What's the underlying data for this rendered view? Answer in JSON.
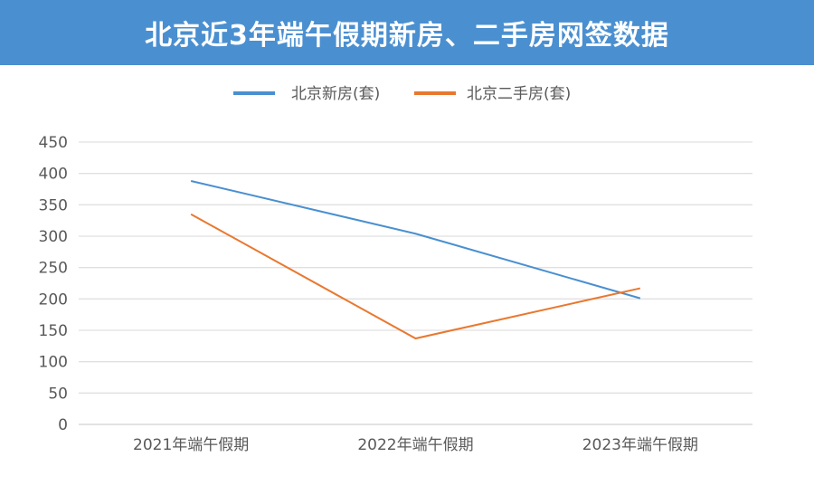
{
  "banner_title": "北京近3年端午假期新房、二手房网签数据",
  "chart_data": {
    "type": "line",
    "title": "北京近3年端午假期新房、二手房网签数据",
    "categories": [
      "2021年端午假期",
      "2022年端午假期",
      "2023年端午假期"
    ],
    "series": [
      {
        "name": "北京新房(套)",
        "values": [
          388,
          304,
          201
        ],
        "color": "#4a8fd0"
      },
      {
        "name": "北京二手房(套)",
        "values": [
          335,
          137,
          217
        ],
        "color": "#e9782f"
      }
    ],
    "xlabel": "",
    "ylabel": "",
    "ylim": [
      0,
      450
    ],
    "yticks": [
      0,
      50,
      100,
      150,
      200,
      250,
      300,
      350,
      400,
      450
    ],
    "grid": true,
    "legend": "top"
  }
}
